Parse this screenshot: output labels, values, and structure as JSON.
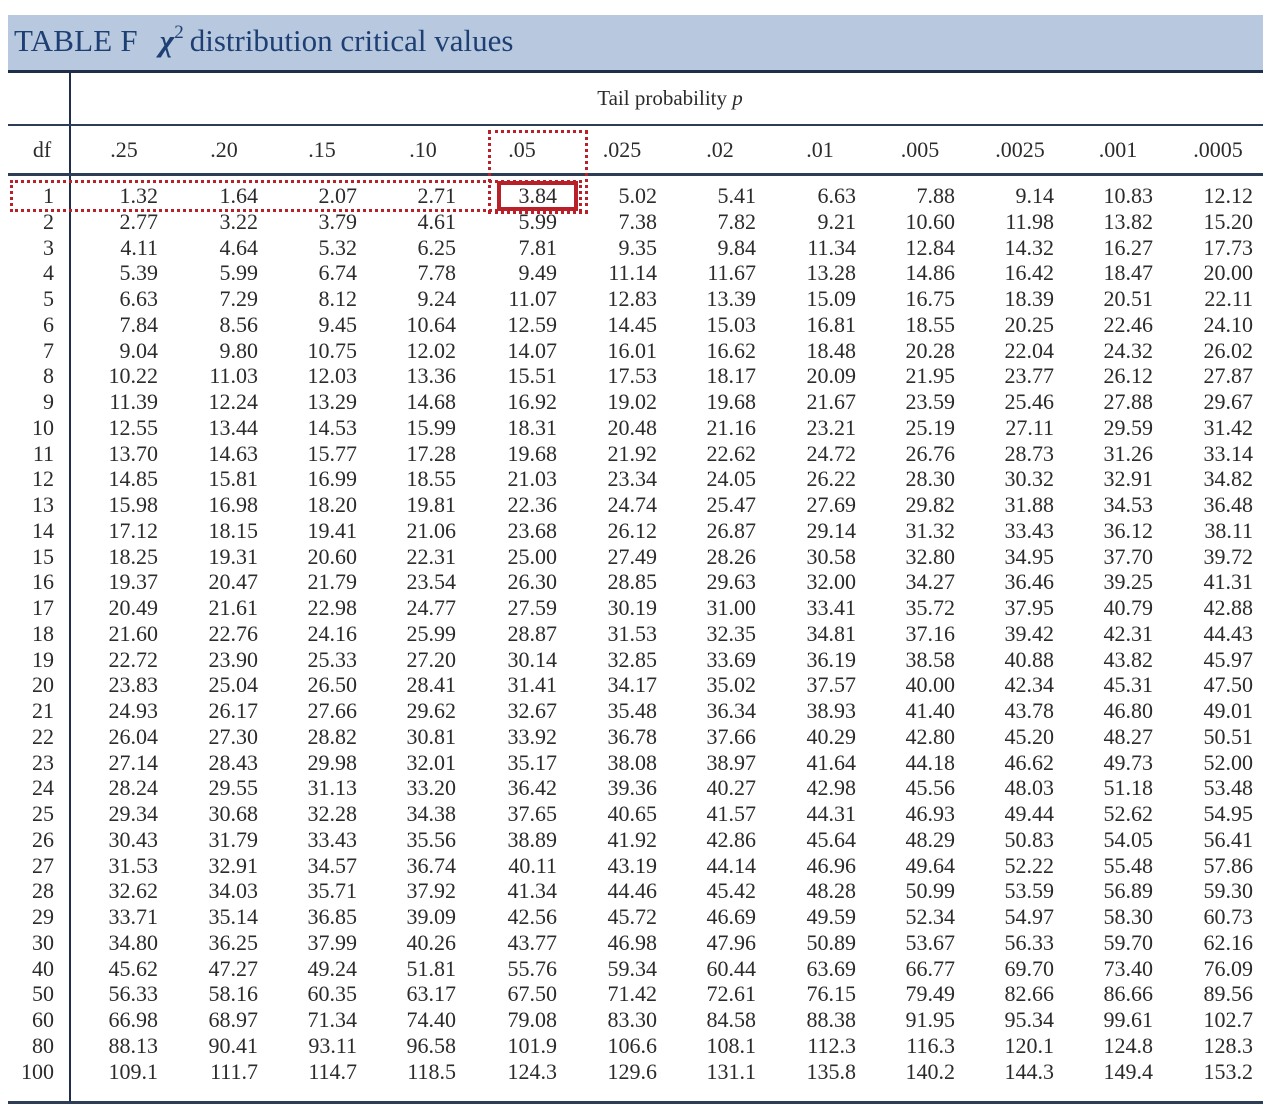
{
  "title": {
    "label": "TABLE F",
    "symbol": "χ",
    "superscript": "2",
    "text": "distribution critical values"
  },
  "tail_label": {
    "text": "Tail probability",
    "symbol": "p"
  },
  "df_header": "df",
  "columns": [
    ".25",
    ".20",
    ".15",
    ".10",
    ".05",
    ".025",
    ".02",
    ".01",
    ".005",
    ".0025",
    ".001",
    ".0005"
  ],
  "rows": [
    {
      "df": "1",
      "values": [
        "1.32",
        "1.64",
        "2.07",
        "2.71",
        "3.84",
        "5.02",
        "5.41",
        "6.63",
        "7.88",
        "9.14",
        "10.83",
        "12.12"
      ]
    },
    {
      "df": "2",
      "values": [
        "2.77",
        "3.22",
        "3.79",
        "4.61",
        "5.99",
        "7.38",
        "7.82",
        "9.21",
        "10.60",
        "11.98",
        "13.82",
        "15.20"
      ]
    },
    {
      "df": "3",
      "values": [
        "4.11",
        "4.64",
        "5.32",
        "6.25",
        "7.81",
        "9.35",
        "9.84",
        "11.34",
        "12.84",
        "14.32",
        "16.27",
        "17.73"
      ]
    },
    {
      "df": "4",
      "values": [
        "5.39",
        "5.99",
        "6.74",
        "7.78",
        "9.49",
        "11.14",
        "11.67",
        "13.28",
        "14.86",
        "16.42",
        "18.47",
        "20.00"
      ]
    },
    {
      "df": "5",
      "values": [
        "6.63",
        "7.29",
        "8.12",
        "9.24",
        "11.07",
        "12.83",
        "13.39",
        "15.09",
        "16.75",
        "18.39",
        "20.51",
        "22.11"
      ]
    },
    {
      "df": "6",
      "values": [
        "7.84",
        "8.56",
        "9.45",
        "10.64",
        "12.59",
        "14.45",
        "15.03",
        "16.81",
        "18.55",
        "20.25",
        "22.46",
        "24.10"
      ]
    },
    {
      "df": "7",
      "values": [
        "9.04",
        "9.80",
        "10.75",
        "12.02",
        "14.07",
        "16.01",
        "16.62",
        "18.48",
        "20.28",
        "22.04",
        "24.32",
        "26.02"
      ]
    },
    {
      "df": "8",
      "values": [
        "10.22",
        "11.03",
        "12.03",
        "13.36",
        "15.51",
        "17.53",
        "18.17",
        "20.09",
        "21.95",
        "23.77",
        "26.12",
        "27.87"
      ]
    },
    {
      "df": "9",
      "values": [
        "11.39",
        "12.24",
        "13.29",
        "14.68",
        "16.92",
        "19.02",
        "19.68",
        "21.67",
        "23.59",
        "25.46",
        "27.88",
        "29.67"
      ]
    },
    {
      "df": "10",
      "values": [
        "12.55",
        "13.44",
        "14.53",
        "15.99",
        "18.31",
        "20.48",
        "21.16",
        "23.21",
        "25.19",
        "27.11",
        "29.59",
        "31.42"
      ]
    },
    {
      "df": "11",
      "values": [
        "13.70",
        "14.63",
        "15.77",
        "17.28",
        "19.68",
        "21.92",
        "22.62",
        "24.72",
        "26.76",
        "28.73",
        "31.26",
        "33.14"
      ]
    },
    {
      "df": "12",
      "values": [
        "14.85",
        "15.81",
        "16.99",
        "18.55",
        "21.03",
        "23.34",
        "24.05",
        "26.22",
        "28.30",
        "30.32",
        "32.91",
        "34.82"
      ]
    },
    {
      "df": "13",
      "values": [
        "15.98",
        "16.98",
        "18.20",
        "19.81",
        "22.36",
        "24.74",
        "25.47",
        "27.69",
        "29.82",
        "31.88",
        "34.53",
        "36.48"
      ]
    },
    {
      "df": "14",
      "values": [
        "17.12",
        "18.15",
        "19.41",
        "21.06",
        "23.68",
        "26.12",
        "26.87",
        "29.14",
        "31.32",
        "33.43",
        "36.12",
        "38.11"
      ]
    },
    {
      "df": "15",
      "values": [
        "18.25",
        "19.31",
        "20.60",
        "22.31",
        "25.00",
        "27.49",
        "28.26",
        "30.58",
        "32.80",
        "34.95",
        "37.70",
        "39.72"
      ]
    },
    {
      "df": "16",
      "values": [
        "19.37",
        "20.47",
        "21.79",
        "23.54",
        "26.30",
        "28.85",
        "29.63",
        "32.00",
        "34.27",
        "36.46",
        "39.25",
        "41.31"
      ]
    },
    {
      "df": "17",
      "values": [
        "20.49",
        "21.61",
        "22.98",
        "24.77",
        "27.59",
        "30.19",
        "31.00",
        "33.41",
        "35.72",
        "37.95",
        "40.79",
        "42.88"
      ]
    },
    {
      "df": "18",
      "values": [
        "21.60",
        "22.76",
        "24.16",
        "25.99",
        "28.87",
        "31.53",
        "32.35",
        "34.81",
        "37.16",
        "39.42",
        "42.31",
        "44.43"
      ]
    },
    {
      "df": "19",
      "values": [
        "22.72",
        "23.90",
        "25.33",
        "27.20",
        "30.14",
        "32.85",
        "33.69",
        "36.19",
        "38.58",
        "40.88",
        "43.82",
        "45.97"
      ]
    },
    {
      "df": "20",
      "values": [
        "23.83",
        "25.04",
        "26.50",
        "28.41",
        "31.41",
        "34.17",
        "35.02",
        "37.57",
        "40.00",
        "42.34",
        "45.31",
        "47.50"
      ]
    },
    {
      "df": "21",
      "values": [
        "24.93",
        "26.17",
        "27.66",
        "29.62",
        "32.67",
        "35.48",
        "36.34",
        "38.93",
        "41.40",
        "43.78",
        "46.80",
        "49.01"
      ]
    },
    {
      "df": "22",
      "values": [
        "26.04",
        "27.30",
        "28.82",
        "30.81",
        "33.92",
        "36.78",
        "37.66",
        "40.29",
        "42.80",
        "45.20",
        "48.27",
        "50.51"
      ]
    },
    {
      "df": "23",
      "values": [
        "27.14",
        "28.43",
        "29.98",
        "32.01",
        "35.17",
        "38.08",
        "38.97",
        "41.64",
        "44.18",
        "46.62",
        "49.73",
        "52.00"
      ]
    },
    {
      "df": "24",
      "values": [
        "28.24",
        "29.55",
        "31.13",
        "33.20",
        "36.42",
        "39.36",
        "40.27",
        "42.98",
        "45.56",
        "48.03",
        "51.18",
        "53.48"
      ]
    },
    {
      "df": "25",
      "values": [
        "29.34",
        "30.68",
        "32.28",
        "34.38",
        "37.65",
        "40.65",
        "41.57",
        "44.31",
        "46.93",
        "49.44",
        "52.62",
        "54.95"
      ]
    },
    {
      "df": "26",
      "values": [
        "30.43",
        "31.79",
        "33.43",
        "35.56",
        "38.89",
        "41.92",
        "42.86",
        "45.64",
        "48.29",
        "50.83",
        "54.05",
        "56.41"
      ]
    },
    {
      "df": "27",
      "values": [
        "31.53",
        "32.91",
        "34.57",
        "36.74",
        "40.11",
        "43.19",
        "44.14",
        "46.96",
        "49.64",
        "52.22",
        "55.48",
        "57.86"
      ]
    },
    {
      "df": "28",
      "values": [
        "32.62",
        "34.03",
        "35.71",
        "37.92",
        "41.34",
        "44.46",
        "45.42",
        "48.28",
        "50.99",
        "53.59",
        "56.89",
        "59.30"
      ]
    },
    {
      "df": "29",
      "values": [
        "33.71",
        "35.14",
        "36.85",
        "39.09",
        "42.56",
        "45.72",
        "46.69",
        "49.59",
        "52.34",
        "54.97",
        "58.30",
        "60.73"
      ]
    },
    {
      "df": "30",
      "values": [
        "34.80",
        "36.25",
        "37.99",
        "40.26",
        "43.77",
        "46.98",
        "47.96",
        "50.89",
        "53.67",
        "56.33",
        "59.70",
        "62.16"
      ]
    },
    {
      "df": "40",
      "values": [
        "45.62",
        "47.27",
        "49.24",
        "51.81",
        "55.76",
        "59.34",
        "60.44",
        "63.69",
        "66.77",
        "69.70",
        "73.40",
        "76.09"
      ]
    },
    {
      "df": "50",
      "values": [
        "56.33",
        "58.16",
        "60.35",
        "63.17",
        "67.50",
        "71.42",
        "72.61",
        "76.15",
        "79.49",
        "82.66",
        "86.66",
        "89.56"
      ]
    },
    {
      "df": "60",
      "values": [
        "66.98",
        "68.97",
        "71.34",
        "74.40",
        "79.08",
        "83.30",
        "84.58",
        "88.38",
        "91.95",
        "95.34",
        "99.61",
        "102.7"
      ]
    },
    {
      "df": "80",
      "values": [
        "88.13",
        "90.41",
        "93.11",
        "96.58",
        "101.9",
        "106.6",
        "108.1",
        "112.3",
        "116.3",
        "120.1",
        "124.8",
        "128.3"
      ]
    },
    {
      "df": "100",
      "values": [
        "109.1",
        "111.7",
        "114.7",
        "118.5",
        "124.3",
        "129.6",
        "131.1",
        "135.8",
        "140.2",
        "144.3",
        "149.4",
        "153.2"
      ]
    }
  ],
  "highlight": {
    "row_df": "1",
    "column": ".05",
    "color": "#b8202a"
  },
  "colors": {
    "title_band": "#b8c9df",
    "title_text": "#1e3f73",
    "rules": "#2d3d55"
  }
}
